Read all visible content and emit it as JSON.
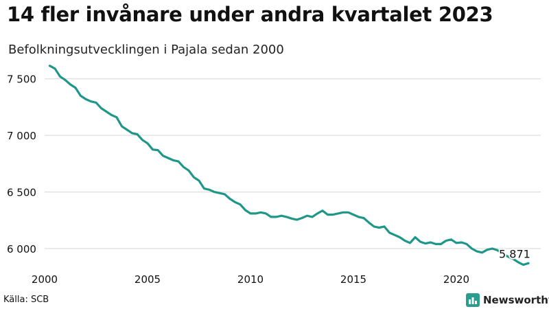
{
  "title": "14 fler invånare under andra kvartalet 2023",
  "subtitle": "Befolkningsutvecklingen i Pajala sedan 2000",
  "source": "Källa: SCB",
  "brand": {
    "name": "Newsworthy",
    "icon": "newsworthy-logo-icon",
    "color": "#2a9d8f"
  },
  "colors": {
    "line": "#1e9688",
    "grid": "#dddddd",
    "text": "#111111"
  },
  "chart_data": {
    "type": "line",
    "title": "14 fler invånare under andra kvartalet 2023",
    "subtitle": "Befolkningsutvecklingen i Pajala sedan 2000",
    "xlabel": "",
    "ylabel": "",
    "xlim": [
      2000.0,
      2023.5
    ],
    "ylim": [
      5800,
      7650
    ],
    "x_ticks": [
      2000,
      2005,
      2010,
      2015,
      2020
    ],
    "x_tick_labels": [
      "2000",
      "2005",
      "2010",
      "2015",
      "2020"
    ],
    "y_ticks": [
      6000,
      6500,
      7000,
      7500
    ],
    "y_tick_labels": [
      "6 000",
      "6 500",
      "7 000",
      "7 500"
    ],
    "grid": "horizontal",
    "end_label": "5 871",
    "x": [
      2000.25,
      2000.5,
      2000.75,
      2001.0,
      2001.25,
      2001.5,
      2001.75,
      2002.0,
      2002.25,
      2002.5,
      2002.75,
      2003.0,
      2003.25,
      2003.5,
      2003.75,
      2004.0,
      2004.25,
      2004.5,
      2004.75,
      2005.0,
      2005.25,
      2005.5,
      2005.75,
      2006.0,
      2006.25,
      2006.5,
      2006.75,
      2007.0,
      2007.25,
      2007.5,
      2007.75,
      2008.0,
      2008.25,
      2008.5,
      2008.75,
      2009.0,
      2009.25,
      2009.5,
      2009.75,
      2010.0,
      2010.25,
      2010.5,
      2010.75,
      2011.0,
      2011.25,
      2011.5,
      2011.75,
      2012.0,
      2012.25,
      2012.5,
      2012.75,
      2013.0,
      2013.25,
      2013.5,
      2013.75,
      2014.0,
      2014.25,
      2014.5,
      2014.75,
      2015.0,
      2015.25,
      2015.5,
      2015.75,
      2016.0,
      2016.25,
      2016.5,
      2016.75,
      2017.0,
      2017.25,
      2017.5,
      2017.75,
      2018.0,
      2018.25,
      2018.5,
      2018.75,
      2019.0,
      2019.25,
      2019.5,
      2019.75,
      2020.0,
      2020.25,
      2020.5,
      2020.75,
      2021.0,
      2021.25,
      2021.5,
      2021.75,
      2022.0,
      2022.25,
      2022.5,
      2022.75,
      2023.0,
      2023.25,
      2023.5
    ],
    "series": [
      {
        "values": [
          7615,
          7590,
          7520,
          7490,
          7450,
          7420,
          7350,
          7320,
          7300,
          7290,
          7240,
          7210,
          7180,
          7160,
          7080,
          7050,
          7020,
          7010,
          6960,
          6930,
          6875,
          6870,
          6820,
          6800,
          6780,
          6770,
          6720,
          6690,
          6630,
          6600,
          6530,
          6520,
          6500,
          6490,
          6480,
          6440,
          6410,
          6390,
          6340,
          6310,
          6310,
          6320,
          6310,
          6280,
          6280,
          6290,
          6280,
          6265,
          6255,
          6270,
          6290,
          6280,
          6310,
          6335,
          6300,
          6300,
          6310,
          6320,
          6320,
          6300,
          6280,
          6270,
          6230,
          6195,
          6185,
          6195,
          6140,
          6120,
          6100,
          6070,
          6050,
          6100,
          6060,
          6045,
          6055,
          6040,
          6040,
          6070,
          6080,
          6050,
          6055,
          6040,
          6000,
          5975,
          5965,
          5990,
          6000,
          5985,
          5955,
          5930,
          5910,
          5880,
          5857,
          5871
        ]
      }
    ]
  }
}
